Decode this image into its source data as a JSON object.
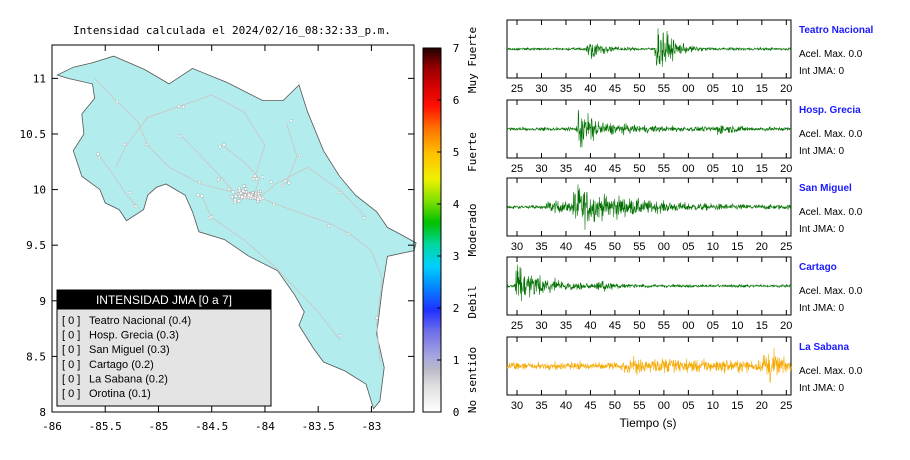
{
  "map": {
    "title": "Intensidad calculada el 2024/02/16_08:32:33_p.m.",
    "x_ticks": [
      "-86",
      "-85.5",
      "-85",
      "-84.5",
      "-84",
      "-83.5",
      "-83"
    ],
    "y_ticks": [
      "11",
      "10.5",
      "10",
      "9.5",
      "9",
      "8.5",
      "8"
    ],
    "land_color": "#b3ecec"
  },
  "colorbar": {
    "ticks": [
      "0",
      "1",
      "2",
      "3",
      "4",
      "5",
      "6",
      "7"
    ],
    "categories": [
      "No sentido",
      "Debil",
      "Moderado",
      "Fuerte",
      "Muy Fuerte"
    ]
  },
  "legend": {
    "title": "INTENSIDAD JMA [0 a 7]",
    "rows": [
      {
        "code": "[ 0 ]",
        "station": "Teatro Nacional (0.4)"
      },
      {
        "code": "[ 0 ]",
        "station": "Hosp. Grecia (0.3)"
      },
      {
        "code": "[ 0 ]",
        "station": "San Miguel (0.3)"
      },
      {
        "code": "[ 0 ]",
        "station": "Cartago (0.2)"
      },
      {
        "code": "[ 0 ]",
        "station": "La Sabana (0.2)"
      },
      {
        "code": "[ 0 ]",
        "station": "Orotina (0.1)"
      }
    ]
  },
  "chart_data": [
    {
      "type": "heatmap",
      "title": "Intensidad calculada el 2024/02/16_08:32:33_p.m.",
      "xlim": [
        -86,
        -82.6
      ],
      "ylim": [
        8,
        11.3
      ],
      "colorbar_range": [
        0,
        7
      ],
      "station_intensities": [
        {
          "station": "Teatro Nacional",
          "jma": 0,
          "value": 0.4
        },
        {
          "station": "Hosp. Grecia",
          "jma": 0,
          "value": 0.3
        },
        {
          "station": "San Miguel",
          "jma": 0,
          "value": 0.3
        },
        {
          "station": "Cartago",
          "jma": 0,
          "value": 0.2
        },
        {
          "station": "La Sabana",
          "jma": 0,
          "value": 0.2
        },
        {
          "station": "Orotina",
          "jma": 0,
          "value": 0.1
        }
      ]
    },
    {
      "type": "line",
      "xlabel": "Tiempo (s)",
      "traces": [
        {
          "station": "Teatro Nacional",
          "color": "#007000",
          "ticks": [
            "25",
            "30",
            "35",
            "40",
            "45",
            "50",
            "55",
            "00",
            "05",
            "10",
            "15",
            "20"
          ],
          "accel_label": "Acel. Max. 0.0",
          "int_label": "Int JMA: 0"
        },
        {
          "station": "Hosp. Grecia",
          "color": "#007000",
          "ticks": [
            "25",
            "30",
            "35",
            "40",
            "45",
            "50",
            "55",
            "00",
            "05",
            "10",
            "15",
            "20"
          ],
          "accel_label": "Acel. Max. 0.0",
          "int_label": "Int JMA: 0"
        },
        {
          "station": "San Miguel",
          "color": "#007000",
          "ticks": [
            "30",
            "35",
            "40",
            "45",
            "50",
            "55",
            "00",
            "05",
            "10",
            "15",
            "20",
            "25"
          ],
          "accel_label": "Acel. Max. 0.0",
          "int_label": "Int JMA: 0"
        },
        {
          "station": "Cartago",
          "color": "#007000",
          "ticks": [
            "25",
            "30",
            "35",
            "40",
            "45",
            "50",
            "55",
            "00",
            "05",
            "10",
            "15",
            "20"
          ],
          "accel_label": "Acel. Max. 0.0",
          "int_label": "Int JMA: 0"
        },
        {
          "station": "La Sabana",
          "color": "#f5a800",
          "ticks": [
            "30",
            "35",
            "40",
            "45",
            "50",
            "55",
            "00",
            "05",
            "10",
            "15",
            "20",
            "25"
          ],
          "accel_label": "Acel. Max. 0.0",
          "int_label": "Int JMA: 0"
        }
      ]
    }
  ]
}
